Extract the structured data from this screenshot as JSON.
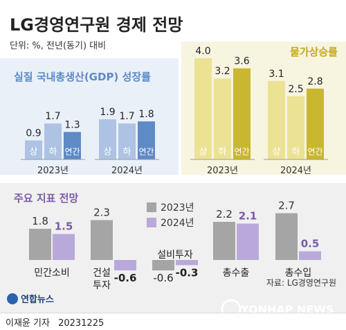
{
  "title": "LG경영연구원 경제 전망",
  "subtitle": "단위: %, 전년(동기) 대비",
  "source": "자료: LG경영연구원",
  "logo_text": "연합뉴스",
  "watermark_text": "YONHAP NEWS",
  "byline": "이재윤 기자",
  "date": "20231225",
  "chart_data": [
    {
      "type": "bar",
      "title": "실질 국내총생산(GDP) 성장률",
      "groups": [
        "2023년",
        "2024년"
      ],
      "categories": [
        "상",
        "하",
        "연간"
      ],
      "series": [
        {
          "group": "2023년",
          "values": [
            0.9,
            1.7,
            1.3
          ]
        },
        {
          "group": "2024년",
          "values": [
            1.9,
            1.7,
            1.8
          ]
        }
      ],
      "colors": {
        "light": "#aec3e3",
        "dark": "#5e8ac6"
      }
    },
    {
      "type": "bar",
      "title": "물가상승률",
      "groups": [
        "2023년",
        "2024년"
      ],
      "categories": [
        "상",
        "하",
        "연간"
      ],
      "series": [
        {
          "group": "2023년",
          "values": [
            4.0,
            3.2,
            3.6
          ]
        },
        {
          "group": "2024년",
          "values": [
            3.1,
            2.5,
            2.8
          ]
        }
      ],
      "colors": {
        "light": "#ece294",
        "dark": "#c9b730"
      }
    },
    {
      "type": "bar",
      "title": "주요 지표 전망",
      "categories": [
        "민간소비",
        "건설\n투자",
        "설비투자",
        "총수출",
        "총수입"
      ],
      "series": [
        {
          "name": "2023년",
          "values": [
            1.8,
            2.3,
            -0.6,
            2.2,
            2.7
          ],
          "color": "#a5a5a5"
        },
        {
          "name": "2024년",
          "values": [
            1.5,
            -0.6,
            -0.3,
            2.1,
            0.5
          ],
          "color": "#b9a9da"
        }
      ],
      "legend": "top-center"
    }
  ],
  "colors": {
    "title": "#222222",
    "gdp_title": "#5b8ac6",
    "cpi_title": "#c9a81c",
    "indicator_title": "#7a5aa8",
    "negative_value": "#222222"
  }
}
